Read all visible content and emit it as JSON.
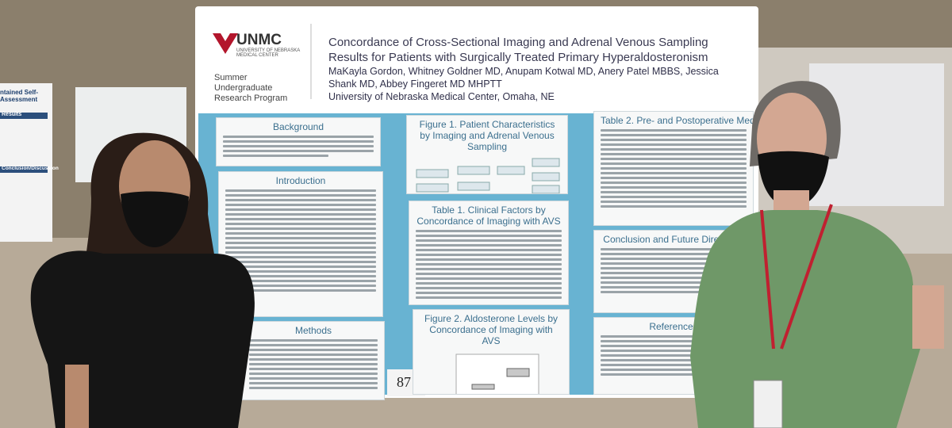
{
  "poster": {
    "logo": "UNMC",
    "institution": "UNIVERSITY OF NEBRASKA MEDICAL CENTER",
    "program": "Summer Undergraduate Research Program",
    "title": "Concordance of Cross-Sectional Imaging and Adrenal Venous Sampling Results for Patients with Surgically Treated Primary Hyperaldosteronism",
    "authors": "MaKayla Gordon, Whitney Goldner MD, Anupam Kotwal MD, Anery Patel MBBS, Jessica Shank MD, Abbey Fingeret MD MHPTT",
    "affiliation": "University of Nebraska Medical Center, Omaha, NE",
    "background": "Background",
    "introduction": "Introduction",
    "methods": "Methods",
    "figure1": "Figure 1. Patient Characteristics by Imaging and Adrenal Venous Sampling",
    "table1": "Table 1. Clinical Factors by Concordance of Imaging with AVS",
    "figure2": "Figure 2. Aldosterone Levels by Concordance of Imaging with AVS",
    "table2": "Table 2. Pre- and Postoperative Medication",
    "conclusion": "Conclusion and Future Directions",
    "references": "References",
    "board_number": "87"
  },
  "side_poster": {
    "results": "Results",
    "conclusion": "Conclusion/Discussion",
    "heading": "ntained Self-Assessment"
  }
}
